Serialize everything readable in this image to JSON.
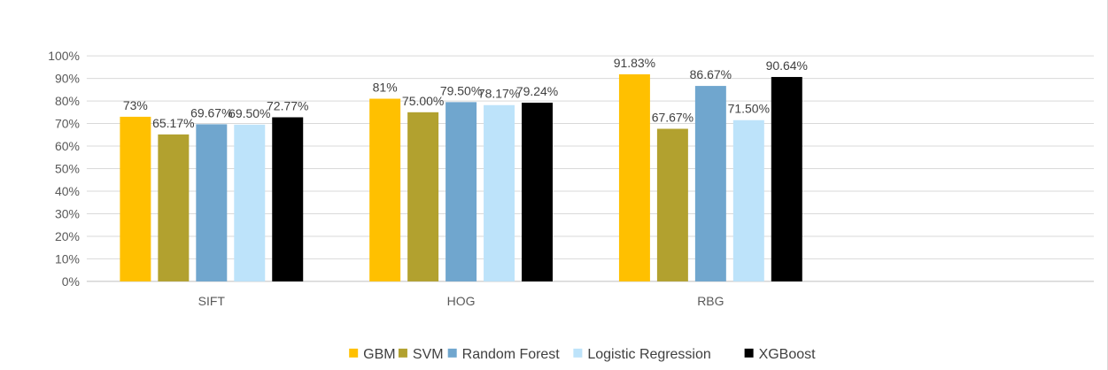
{
  "chart_data": {
    "type": "bar",
    "title": "",
    "xlabel": "",
    "ylabel": "",
    "categories": [
      "SIFT",
      "HOG",
      "RBG"
    ],
    "ylim": [
      0,
      100
    ],
    "y_ticks": [
      0,
      10,
      20,
      30,
      40,
      50,
      60,
      70,
      80,
      90,
      100
    ],
    "y_tick_format": "percent",
    "grid": true,
    "legend_position": "bottom",
    "series": [
      {
        "name": "GBM",
        "color": "#FFC000",
        "values": [
          73,
          81,
          91.83
        ],
        "labels": [
          "73%",
          "81%",
          "91.83%"
        ]
      },
      {
        "name": "SVM",
        "color": "#B2A12F",
        "values": [
          65.17,
          75.0,
          67.67
        ],
        "labels": [
          "65.17%",
          "75.00%",
          "67.67%"
        ]
      },
      {
        "name": "Random Forest",
        "color": "#70A6CE",
        "values": [
          69.67,
          79.5,
          86.67
        ],
        "labels": [
          "69.67%",
          "79.50%",
          "86.67%"
        ]
      },
      {
        "name": "Logistic Regression",
        "color": "#BDE3FA",
        "values": [
          69.5,
          78.17,
          71.5
        ],
        "labels": [
          "69.50%",
          "78.17%",
          "71.50%"
        ]
      },
      {
        "name": "XGBoost",
        "color": "#000000",
        "values": [
          72.77,
          79.24,
          90.64
        ],
        "labels": [
          "72.77%",
          "79.24%",
          "90.64%"
        ]
      }
    ]
  }
}
